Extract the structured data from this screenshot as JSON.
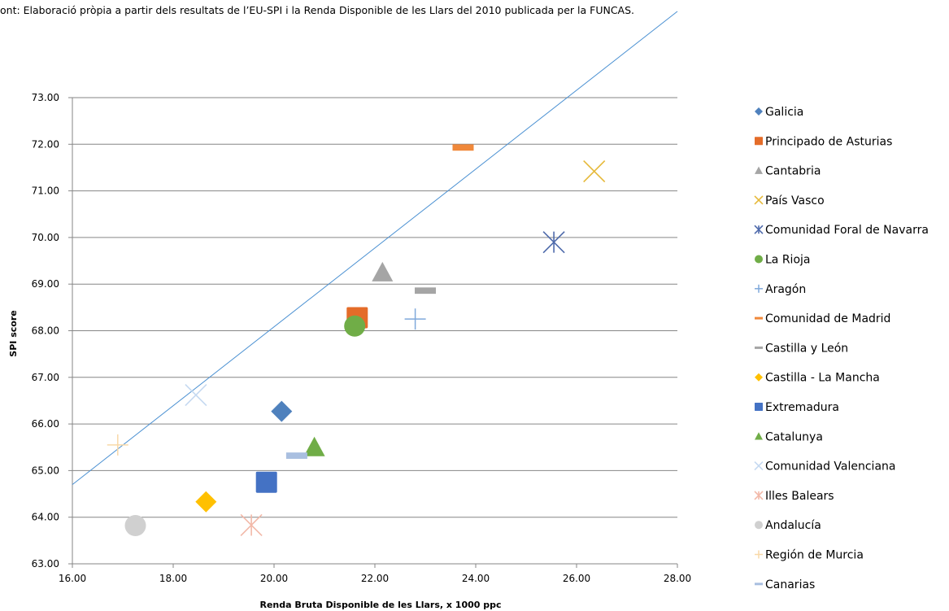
{
  "source_note": "ont: Elaboració pròpia a partir dels resultats de l’EU-SPI i la Renda Disponible de les Llars del 2010 publicada per la FUNCAS.",
  "chart_data": {
    "type": "scatter",
    "xlabel": "Renda Bruta Disponible de les Llars, x 1000 ppc",
    "ylabel": "SPI score",
    "xlim": [
      16,
      28
    ],
    "ylim": [
      63,
      73
    ],
    "x_ticks": [
      "16.00",
      "18.00",
      "20.00",
      "22.00",
      "24.00",
      "26.00",
      "28.00"
    ],
    "y_ticks": [
      "63.00",
      "64.00",
      "65.00",
      "66.00",
      "67.00",
      "68.00",
      "69.00",
      "70.00",
      "71.00",
      "72.00",
      "73.00"
    ],
    "grid": "horizontal",
    "legend_position": "right",
    "trendline": {
      "x1": 16.0,
      "y1": 64.7,
      "x2": 28.0,
      "y2": 74.85,
      "color": "#4A90D2"
    },
    "series": [
      {
        "name": "Galicia",
        "x": 20.15,
        "y": 66.27,
        "marker": "diamond",
        "color": "#4F81BD"
      },
      {
        "name": "Principado de Asturias",
        "x": 21.65,
        "y": 68.28,
        "marker": "square",
        "color": "#E46C29"
      },
      {
        "name": "Cantabria",
        "x": 22.15,
        "y": 69.25,
        "marker": "triangle",
        "color": "#A5A5A5"
      },
      {
        "name": "País Vasco",
        "x": 26.35,
        "y": 71.42,
        "marker": "x",
        "color": "#E6B93A"
      },
      {
        "name": "Comunidad Foral de Navarra",
        "x": 25.55,
        "y": 69.9,
        "marker": "star",
        "color": "#4E6AAB"
      },
      {
        "name": "La Rioja",
        "x": 21.6,
        "y": 68.1,
        "marker": "circle",
        "color": "#70AD47"
      },
      {
        "name": "Aragón",
        "x": 22.8,
        "y": 68.25,
        "marker": "plus",
        "color": "#7FA9DB"
      },
      {
        "name": "Comunidad de Madrid",
        "x": 23.75,
        "y": 71.93,
        "marker": "dash",
        "color": "#F0883A"
      },
      {
        "name": "Castilla y León",
        "x": 23.0,
        "y": 68.86,
        "marker": "dash",
        "color": "#A5A5A5"
      },
      {
        "name": "Castilla - La Mancha",
        "x": 18.65,
        "y": 64.33,
        "marker": "diamond",
        "color": "#FFC000"
      },
      {
        "name": "Extremadura",
        "x": 19.85,
        "y": 64.75,
        "marker": "square",
        "color": "#4472C4"
      },
      {
        "name": "Catalunya",
        "x": 20.8,
        "y": 65.5,
        "marker": "triangle",
        "color": "#70AD47"
      },
      {
        "name": "Comunidad Valenciana",
        "x": 18.45,
        "y": 66.62,
        "marker": "x",
        "color": "#C5D9F1"
      },
      {
        "name": "Illes Balears",
        "x": 19.55,
        "y": 63.83,
        "marker": "star",
        "color": "#F2B8A8"
      },
      {
        "name": "Andalucía",
        "x": 17.25,
        "y": 63.82,
        "marker": "circle",
        "color": "#D0D0D0"
      },
      {
        "name": "Región de Murcia",
        "x": 16.9,
        "y": 65.55,
        "marker": "plus",
        "color": "#F8D9A8"
      },
      {
        "name": "Canarias",
        "x": 20.45,
        "y": 65.32,
        "marker": "dash",
        "color": "#A9BFE0"
      }
    ]
  }
}
